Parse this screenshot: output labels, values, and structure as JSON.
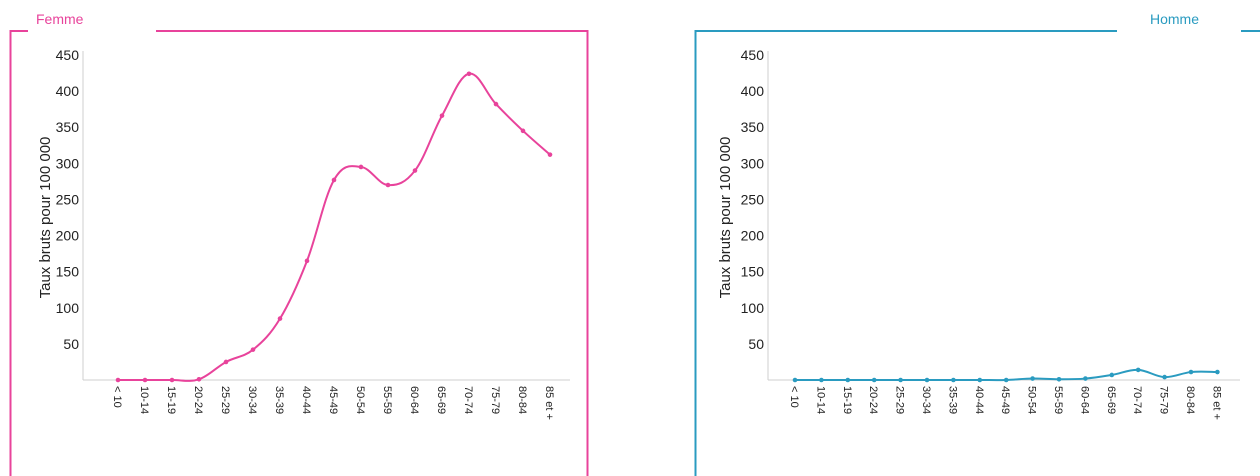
{
  "chart_data": [
    {
      "type": "line",
      "title": "Femme",
      "ylabel": "Taux bruts pour 100 000",
      "xlabel": "",
      "color": "#e8439b",
      "ylim": [
        0,
        450
      ],
      "yticks": [
        50,
        100,
        150,
        200,
        250,
        300,
        350,
        400,
        450
      ],
      "categories": [
        "< 10",
        "10-14",
        "15-19",
        "20-24",
        "25-29",
        "30-34",
        "35-39",
        "40-44",
        "45-49",
        "50-54",
        "55-59",
        "60-64",
        "65-69",
        "70-74",
        "75-79",
        "80-84",
        "85 et +"
      ],
      "values": [
        0,
        0,
        0,
        1,
        25,
        42,
        85,
        165,
        277,
        295,
        270,
        290,
        366,
        424,
        382,
        345,
        312
      ],
      "grid": false
    },
    {
      "type": "line",
      "title": "Homme",
      "ylabel": "Taux bruts pour 100 000",
      "xlabel": "",
      "color": "#2a9bc0",
      "ylim": [
        0,
        450
      ],
      "yticks": [
        50,
        100,
        150,
        200,
        250,
        300,
        350,
        400,
        450
      ],
      "categories": [
        "< 10",
        "10-14",
        "15-19",
        "20-24",
        "25-29",
        "30-34",
        "35-39",
        "40-44",
        "45-49",
        "50-54",
        "55-59",
        "60-64",
        "65-69",
        "70-74",
        "75-79",
        "80-84",
        "85 et +"
      ],
      "values": [
        0,
        0,
        0,
        0,
        0,
        0,
        0,
        0,
        0,
        2,
        1,
        2,
        7,
        14,
        4,
        11,
        11
      ],
      "grid": false
    }
  ]
}
